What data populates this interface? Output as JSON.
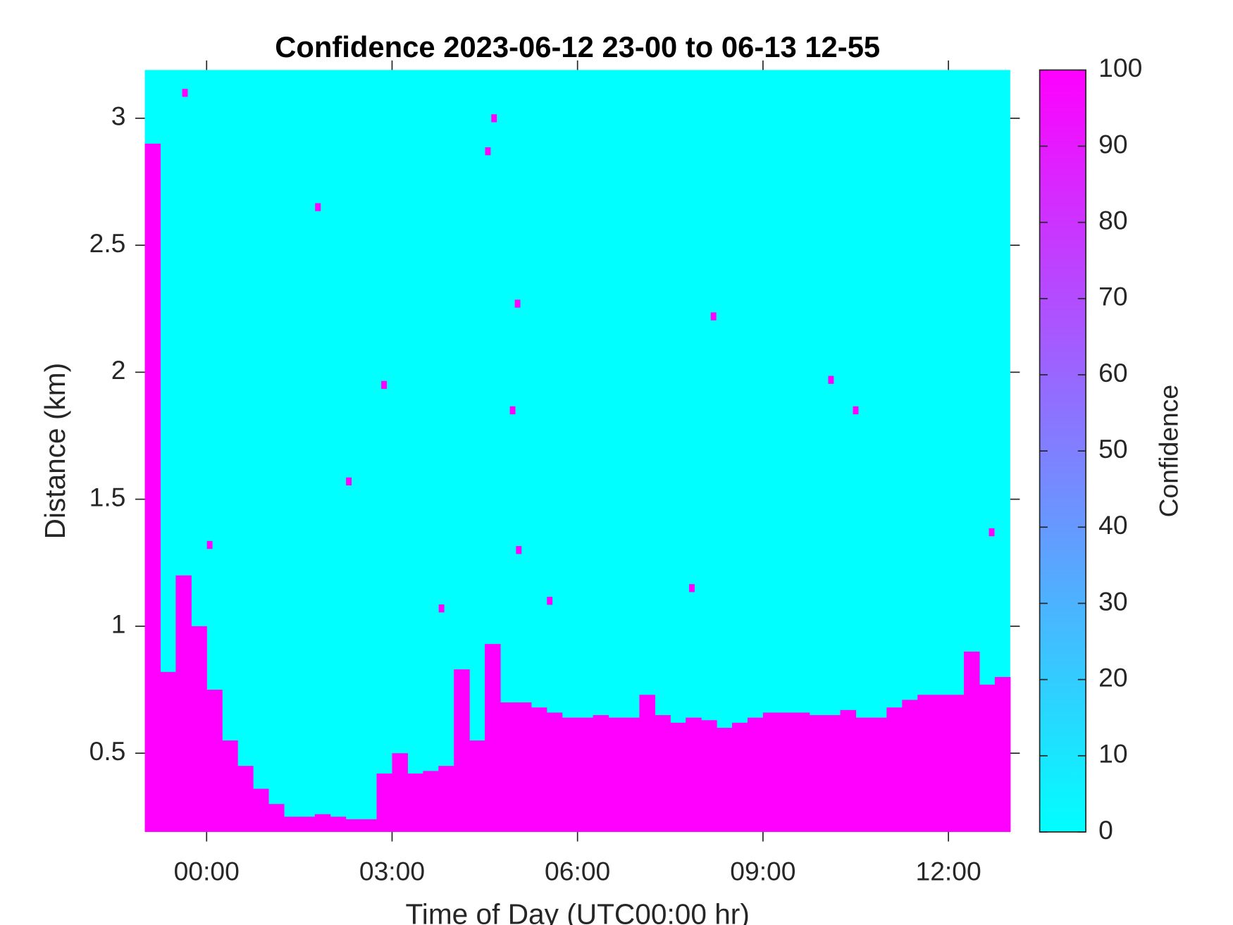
{
  "chart_data": {
    "type": "heatmap",
    "title": "Confidence 2023-06-12 23-00 to 06-13 12-55",
    "x_label": "Time of Day (UTC00:00 hr)",
    "y_label": "Distance (km)",
    "colorbar_label": "Confidence",
    "xlim": [
      -1,
      13
    ],
    "ylim": [
      0.19,
      3.19
    ],
    "xticks": [
      {
        "value": 0,
        "label": "00:00"
      },
      {
        "value": 3,
        "label": "03:00"
      },
      {
        "value": 6,
        "label": "06:00"
      },
      {
        "value": 9,
        "label": "09:00"
      },
      {
        "value": 12,
        "label": "12:00"
      }
    ],
    "yticks": [
      0.5,
      1,
      1.5,
      2,
      2.5,
      3
    ],
    "clim": [
      0,
      100
    ],
    "cticks": [
      0,
      10,
      20,
      30,
      40,
      50,
      60,
      70,
      80,
      90,
      100
    ],
    "colormap": [
      "#00ffff",
      "#ff00ff"
    ],
    "x": [
      -1,
      -0.75,
      -0.5,
      -0.25,
      0,
      0.25,
      0.5,
      0.75,
      1,
      1.25,
      1.5,
      1.75,
      2,
      2.25,
      2.5,
      2.75,
      3,
      3.25,
      3.5,
      3.75,
      4,
      4.25,
      4.5,
      4.75,
      5,
      5.25,
      5.5,
      5.75,
      6,
      6.25,
      6.5,
      6.75,
      7,
      7.25,
      7.5,
      7.75,
      8,
      8.25,
      8.5,
      8.75,
      9,
      9.25,
      9.5,
      9.75,
      10,
      10.25,
      10.5,
      10.75,
      11,
      11.25,
      11.5,
      11.75,
      12,
      12.25,
      12.5,
      12.75
    ],
    "values": [
      2.9,
      0.82,
      1.2,
      1.0,
      0.75,
      0.55,
      0.45,
      0.36,
      0.3,
      0.25,
      0.25,
      0.26,
      0.25,
      0.24,
      0.24,
      0.42,
      0.5,
      0.42,
      0.43,
      0.45,
      0.83,
      0.55,
      0.93,
      0.7,
      0.7,
      0.68,
      0.66,
      0.64,
      0.64,
      0.65,
      0.64,
      0.64,
      0.73,
      0.65,
      0.62,
      0.64,
      0.63,
      0.6,
      0.62,
      0.64,
      0.66,
      0.66,
      0.66,
      0.65,
      0.65,
      0.67,
      0.64,
      0.64,
      0.68,
      0.71,
      0.73,
      0.73,
      0.73,
      0.9,
      0.77,
      0.8
    ],
    "points_x": [
      1.8,
      2.87,
      2.3,
      3.8,
      4.55,
      4.65,
      5.03,
      4.95,
      5.05,
      5.55,
      7.85,
      8.2,
      10.1,
      10.5,
      12.7,
      -0.35,
      0.05
    ],
    "points_y": [
      2.65,
      1.95,
      1.57,
      1.07,
      2.87,
      3.0,
      2.27,
      1.85,
      1.3,
      1.1,
      1.15,
      2.22,
      1.97,
      1.85,
      1.37,
      3.1,
      1.32
    ]
  }
}
